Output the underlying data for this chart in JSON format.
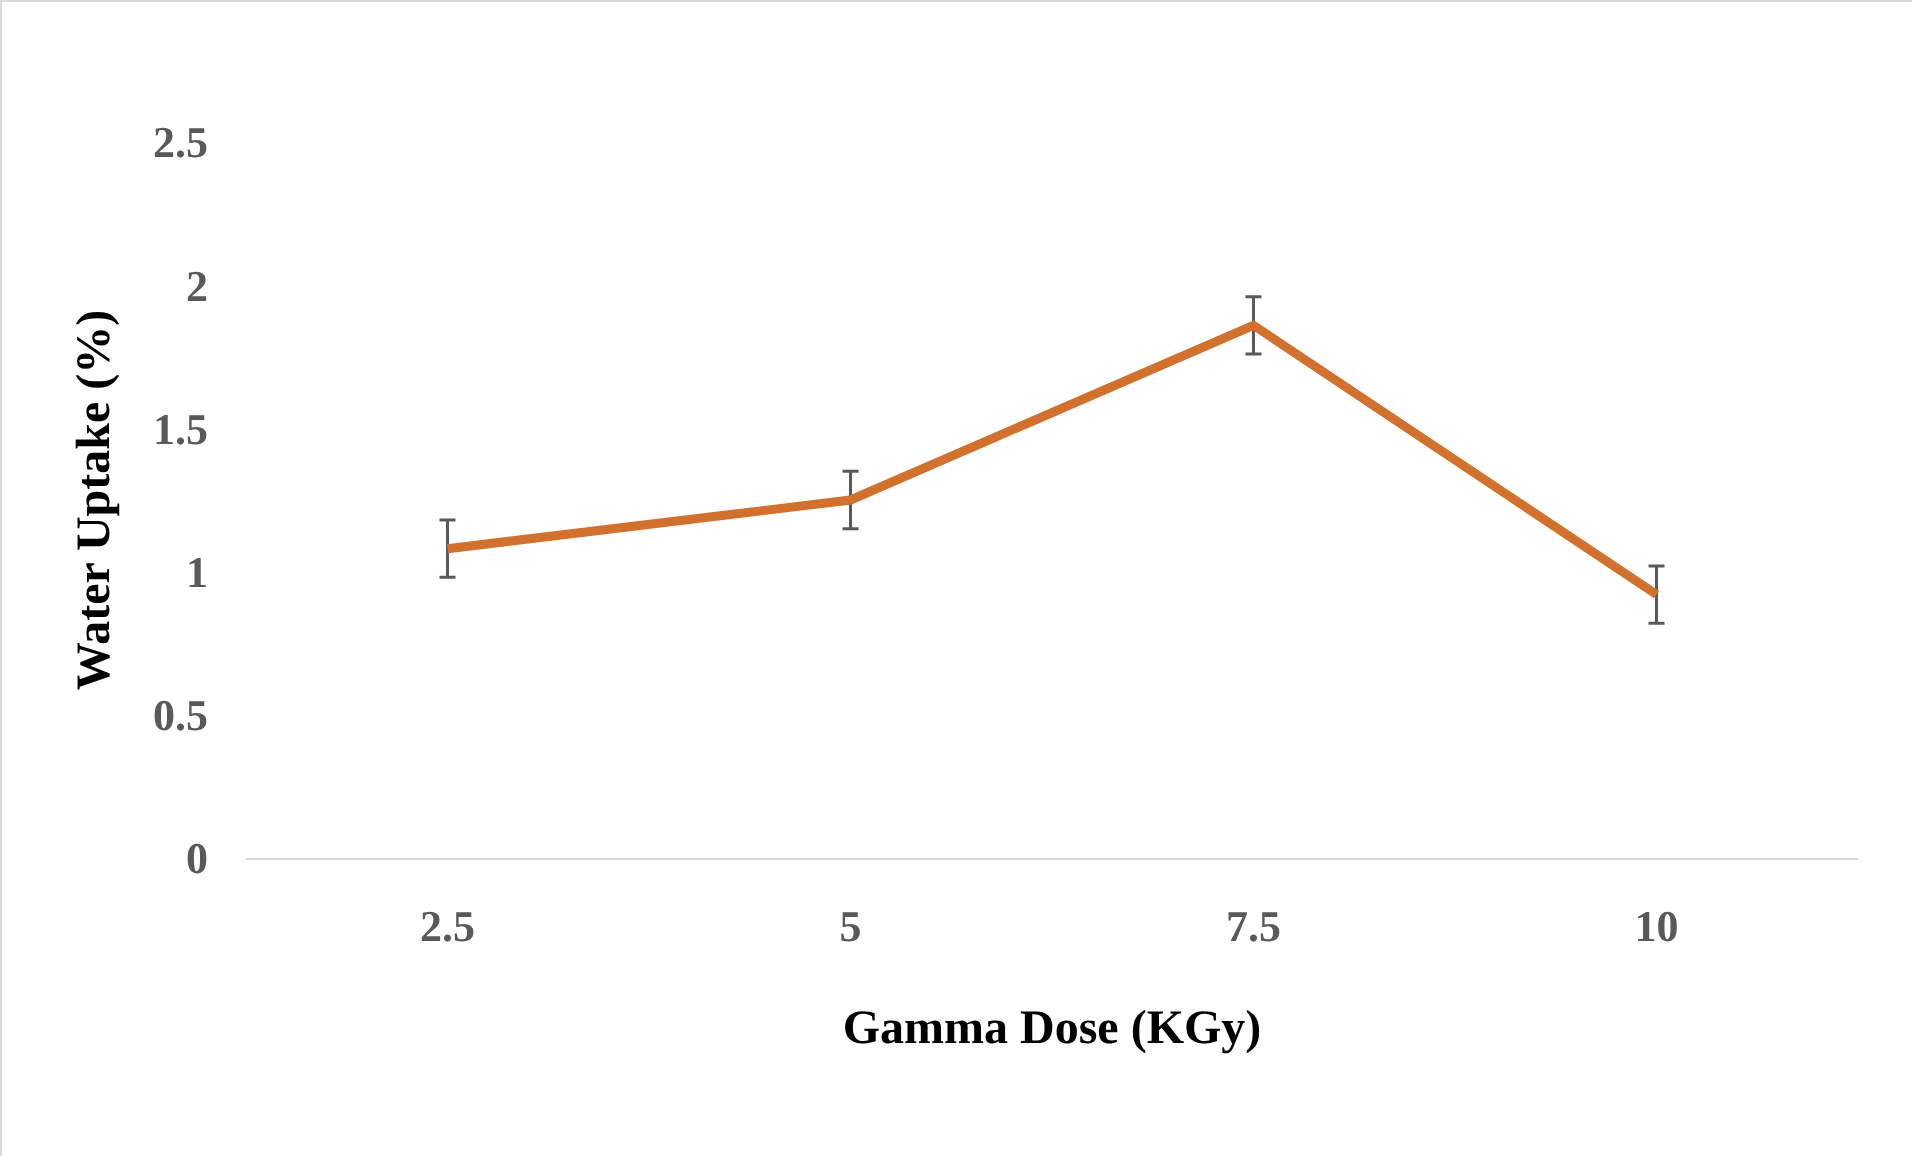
{
  "chart_data": {
    "type": "line",
    "xlabel": "Gamma Dose (KGy)",
    "ylabel": "Water Uptake (%)",
    "categories": [
      "2.5",
      "5",
      "7.5",
      "10"
    ],
    "values": [
      1.08,
      1.25,
      1.86,
      0.92
    ],
    "errors": [
      0.1,
      0.1,
      0.1,
      0.1
    ],
    "color": "#d2712d",
    "ylim": [
      0,
      2.5
    ],
    "yticks": [
      0,
      0.5,
      1,
      1.5,
      2,
      2.5
    ],
    "grid": false,
    "marker": "none",
    "line_style": "solid"
  }
}
